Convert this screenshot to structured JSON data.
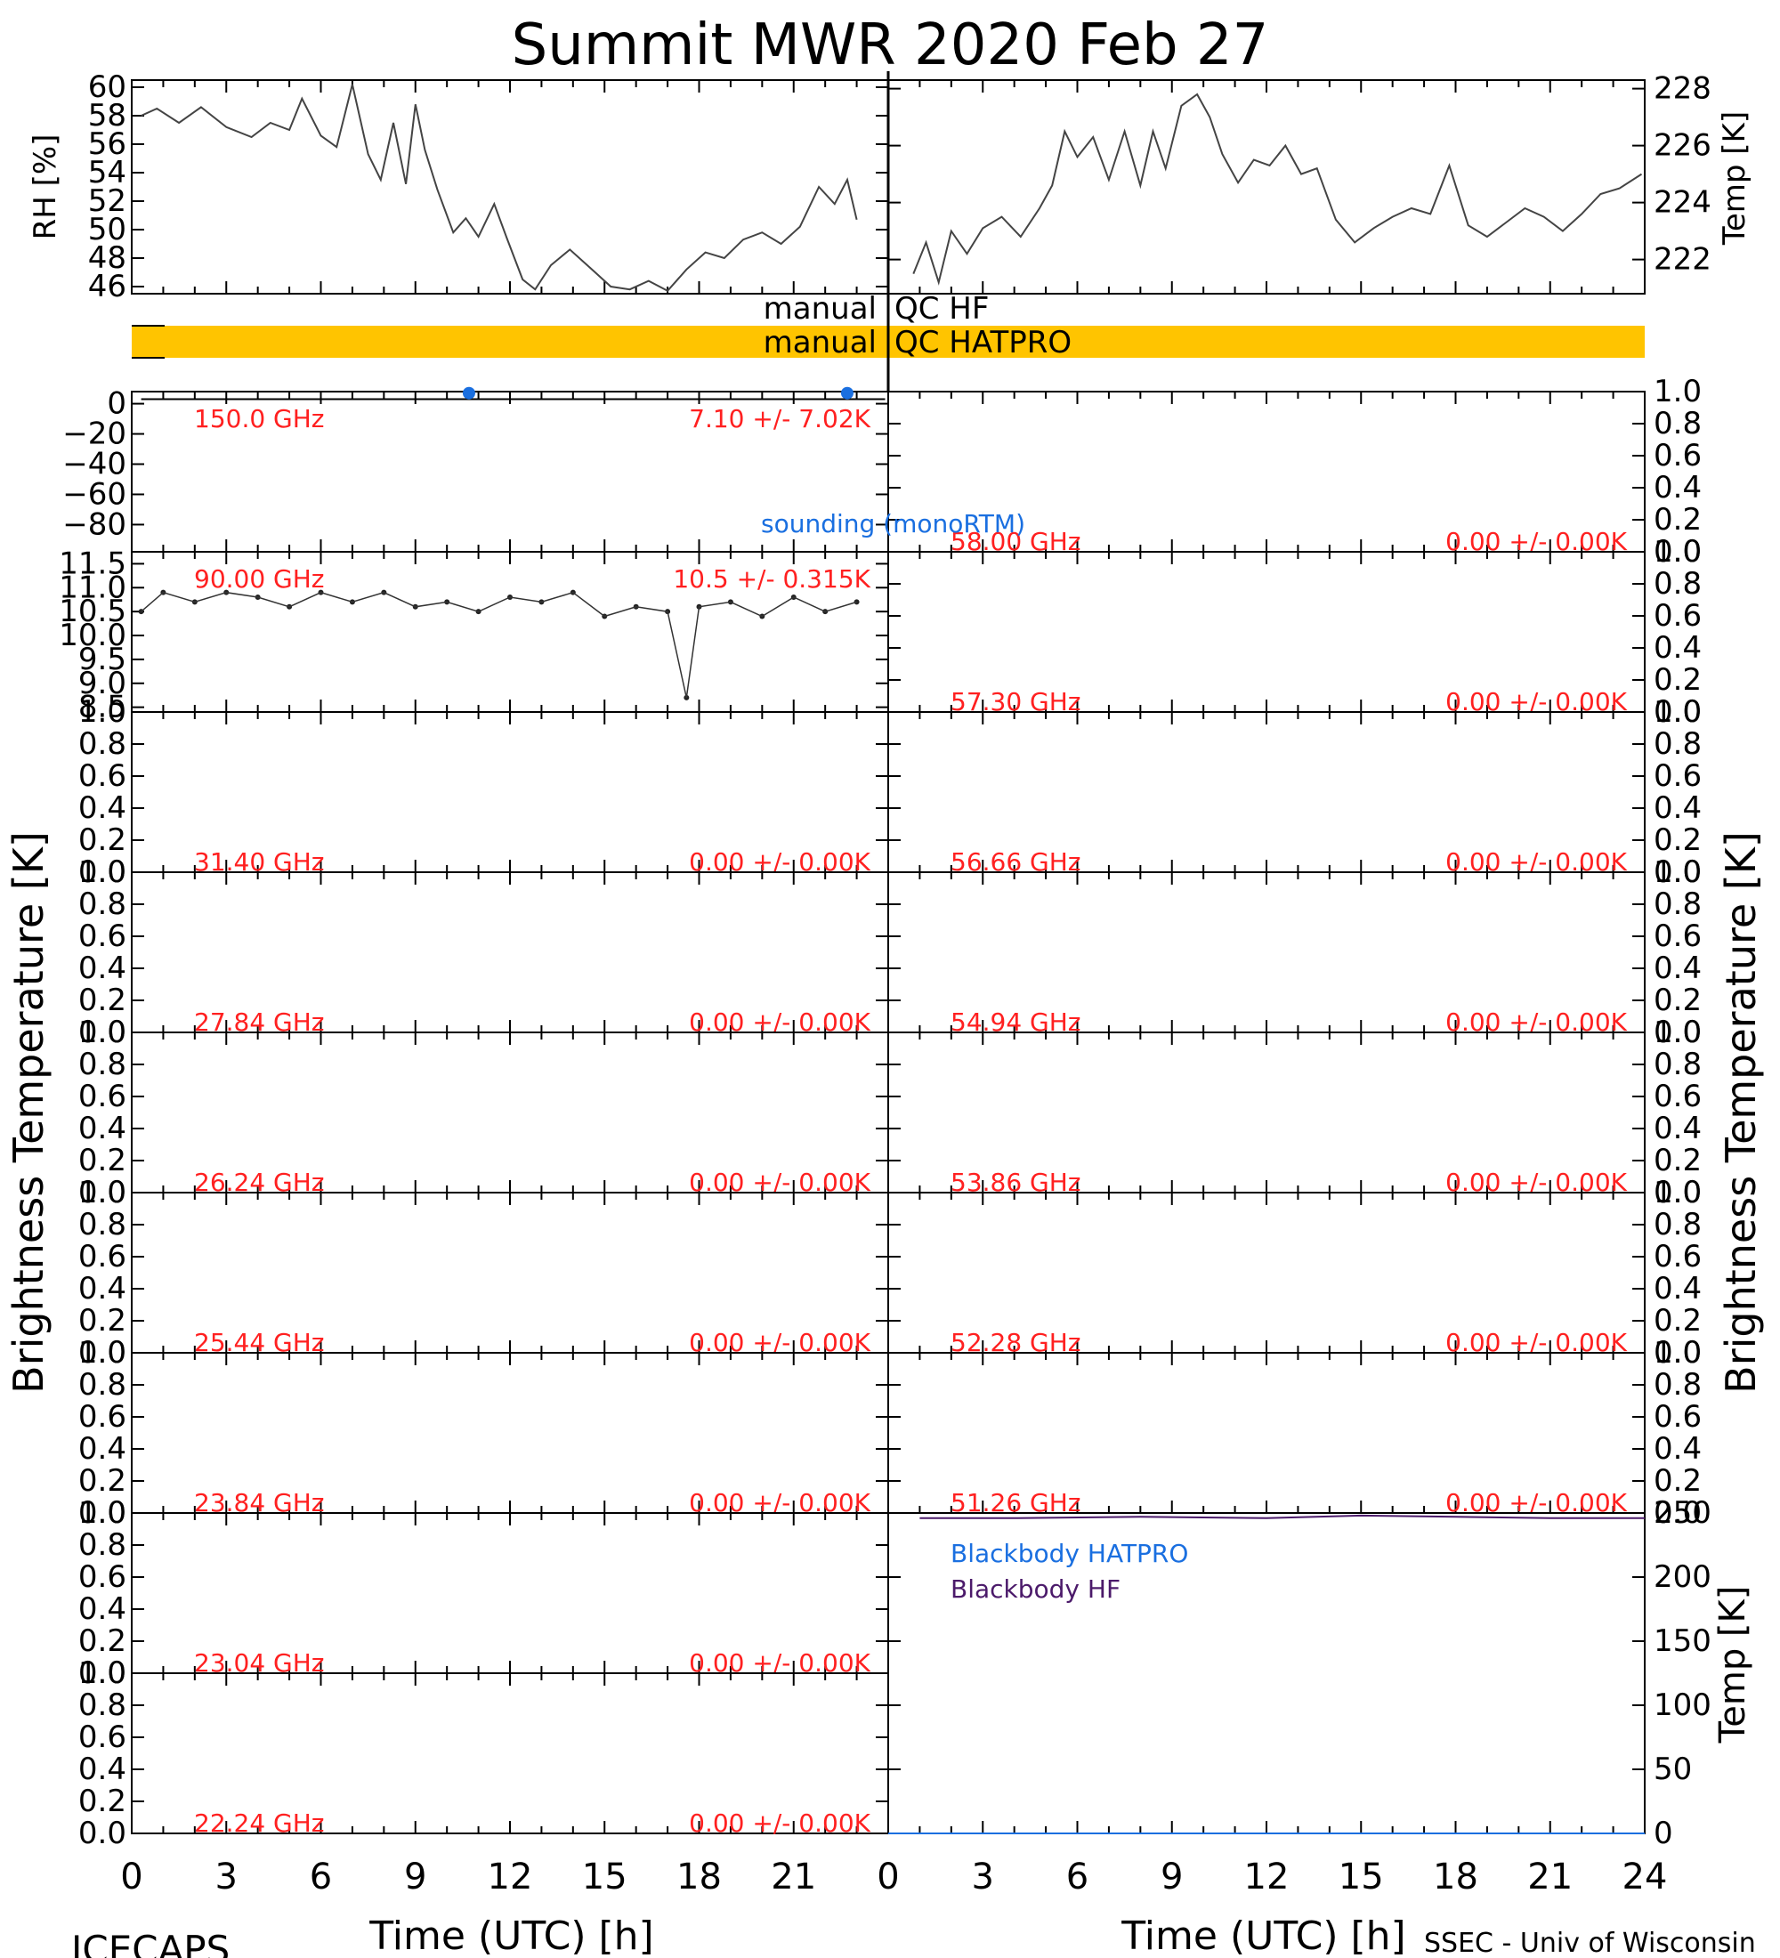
{
  "title": "Summit MWR 2020 Feb 27",
  "footer": {
    "left": "ICECAPS",
    "right": "SSEC - Univ of Wisconsin"
  },
  "x_axis": {
    "label": "Time (UTC) [h]",
    "ticks": [
      "0",
      "3",
      "6",
      "9",
      "12",
      "15",
      "18",
      "21",
      "24"
    ]
  },
  "y_label_left": "Brightness Temperature [K]",
  "y_label_right": "Brightness Temperature [K]",
  "qc": {
    "hf_left": "manual",
    "hf_right": "QC HF",
    "hatpro_left": "manual",
    "hatpro_right": "QC HATPRO",
    "hatpro_color": "#ffc400"
  },
  "legend": {
    "sounding": "sounding (monoRTM)",
    "bb_hatpro": "Blackbody HATPRO",
    "bb_hf": "Blackbody HF"
  },
  "colors": {
    "annotation": "#ff2020",
    "sounding": "#1a6fe0",
    "bb_hf": "#4b1a6a"
  },
  "chart_data": [
    {
      "type": "line",
      "panel": "top-left",
      "ylabel": "RH [%]",
      "ylim": [
        45.5,
        60.5
      ],
      "yticks": [
        "46",
        "48",
        "50",
        "52",
        "54",
        "56",
        "58",
        "60"
      ],
      "series": [
        {
          "x": [
            0.3,
            0.8,
            1.5,
            2.2,
            3,
            3.8,
            4.4,
            5.0,
            5.4,
            6.0,
            6.5,
            7.0,
            7.5,
            7.9,
            8.3,
            8.7,
            9.0,
            9.3,
            9.7,
            10.2,
            10.6,
            11.0,
            11.5,
            11.9,
            12.4,
            12.8,
            13.3,
            13.9,
            14.6,
            15.2,
            15.8,
            16.4,
            17.0,
            17.6,
            18.2,
            18.8,
            19.4,
            20.0,
            20.6,
            21.2,
            21.8,
            22.3,
            22.7,
            23.0
          ],
          "y": [
            58,
            58.5,
            57.5,
            58.6,
            57.2,
            56.5,
            57.5,
            57,
            59.2,
            56.6,
            55.8,
            60.2,
            55.3,
            53.5,
            57.5,
            53.2,
            58.8,
            55.6,
            52.8,
            49.8,
            50.8,
            49.5,
            51.8,
            49.4,
            46.5,
            45.8,
            47.5,
            48.6,
            47.2,
            46.0,
            45.8,
            46.4,
            45.7,
            47.2,
            48.4,
            48.0,
            49.3,
            49.8,
            49.0,
            50.2,
            53.0,
            51.8,
            53.5,
            50.7
          ]
        }
      ]
    },
    {
      "type": "line",
      "panel": "top-right",
      "ylabel": "Temp [K]",
      "ylim": [
        220.8,
        228.3
      ],
      "yticks": [
        "222",
        "224",
        "226",
        "228"
      ],
      "series": [
        {
          "x": [
            0.8,
            1.2,
            1.6,
            2.0,
            2.5,
            3.0,
            3.6,
            4.2,
            4.8,
            5.2,
            5.6,
            6.0,
            6.5,
            7.0,
            7.5,
            8.0,
            8.4,
            8.8,
            9.3,
            9.8,
            10.2,
            10.6,
            11.1,
            11.6,
            12.1,
            12.6,
            13.1,
            13.6,
            14.2,
            14.8,
            15.4,
            16.0,
            16.6,
            17.2,
            17.8,
            18.4,
            19.0,
            19.6,
            20.2,
            20.8,
            21.4,
            22.0,
            22.6,
            23.2,
            23.9
          ],
          "y": [
            221.5,
            222.6,
            221.2,
            223.0,
            222.2,
            223.1,
            223.5,
            222.8,
            223.8,
            224.6,
            226.5,
            225.6,
            226.3,
            224.8,
            226.5,
            224.6,
            226.5,
            225.2,
            227.4,
            227.8,
            227.0,
            225.7,
            224.7,
            225.5,
            225.3,
            226.0,
            225.0,
            225.2,
            223.4,
            222.6,
            223.1,
            223.5,
            223.8,
            223.6,
            225.3,
            223.2,
            222.8,
            223.3,
            223.8,
            223.5,
            223.0,
            223.6,
            224.3,
            224.5,
            225.0
          ]
        }
      ]
    },
    {
      "type": "line",
      "panel": "left-1",
      "freq": "150.0 GHz",
      "stats": "7.10 +/-  7.02K",
      "ylim": [
        -98,
        8
      ],
      "yticks": [
        "0",
        "-20",
        "-40",
        "-60",
        "-80"
      ],
      "series": [
        {
          "name": "sounding (monoRTM)",
          "x": [
            10.7,
            22.7
          ],
          "y": [
            7,
            7
          ]
        }
      ]
    },
    {
      "type": "scatter",
      "panel": "left-2",
      "freq": "90.00 GHz",
      "stats": "10.5 +/- 0.315K",
      "ylim": [
        8.4,
        11.75
      ],
      "yticks": [
        "11.5",
        "11.0",
        "10.5",
        "10.0",
        "9.5",
        "9.0",
        "8.5"
      ],
      "series": [
        {
          "x": [
            0.3,
            1,
            2,
            3,
            4,
            5,
            6,
            7,
            8,
            9,
            10,
            11,
            12,
            13,
            14,
            15,
            16,
            17,
            17.6,
            18,
            19,
            20,
            21,
            22,
            23
          ],
          "y": [
            10.5,
            10.9,
            10.7,
            10.9,
            10.8,
            10.6,
            10.9,
            10.7,
            10.9,
            10.6,
            10.7,
            10.5,
            10.8,
            10.7,
            10.9,
            10.4,
            10.6,
            10.5,
            8.7,
            10.6,
            10.7,
            10.4,
            10.8,
            10.5,
            10.7
          ]
        }
      ]
    },
    {
      "type": "line",
      "panel": "left-3",
      "freq": "31.40 GHz",
      "stats": "0.00 +/-  0.00K"
    },
    {
      "type": "line",
      "panel": "left-4",
      "freq": "27.84 GHz",
      "stats": "0.00 +/-  0.00K"
    },
    {
      "type": "line",
      "panel": "left-5",
      "freq": "26.24 GHz",
      "stats": "0.00 +/-  0.00K"
    },
    {
      "type": "line",
      "panel": "left-6",
      "freq": "25.44 GHz",
      "stats": "0.00 +/-  0.00K"
    },
    {
      "type": "line",
      "panel": "left-7",
      "freq": "23.84 GHz",
      "stats": "0.00 +/-  0.00K"
    },
    {
      "type": "line",
      "panel": "left-8",
      "freq": "23.04 GHz",
      "stats": "0.00 +/-  0.00K"
    },
    {
      "type": "line",
      "panel": "left-9",
      "freq": "22.24 GHz",
      "stats": "0.00 +/-  0.00K"
    },
    {
      "type": "line",
      "panel": "right-1",
      "freq": "58.00 GHz",
      "stats": "0.00 +/-  0.00K"
    },
    {
      "type": "line",
      "panel": "right-2",
      "freq": "57.30 GHz",
      "stats": "0.00 +/-  0.00K"
    },
    {
      "type": "line",
      "panel": "right-3",
      "freq": "56.66 GHz",
      "stats": "0.00 +/-  0.00K"
    },
    {
      "type": "line",
      "panel": "right-4",
      "freq": "54.94 GHz",
      "stats": "0.00 +/-  0.00K"
    },
    {
      "type": "line",
      "panel": "right-5",
      "freq": "53.86 GHz",
      "stats": "0.00 +/-  0.00K"
    },
    {
      "type": "line",
      "panel": "right-6",
      "freq": "52.28 GHz",
      "stats": "0.00 +/-  0.00K"
    },
    {
      "type": "line",
      "panel": "right-7",
      "freq": "51.26 GHz",
      "stats": "0.00 +/-  0.00K"
    },
    {
      "type": "line",
      "panel": "right-8",
      "ylabel": "Temp [K]",
      "ylim": [
        0,
        250
      ],
      "yticks": [
        "250",
        "200",
        "150",
        "100",
        "50",
        "0"
      ],
      "series": [
        {
          "name": "Blackbody HF",
          "x": [
            1,
            4,
            8,
            12,
            15,
            18,
            21,
            24
          ],
          "y": [
            246,
            246,
            247,
            246,
            248,
            247,
            246,
            246
          ]
        },
        {
          "name": "Blackbody HATPRO",
          "x": [
            0,
            24
          ],
          "y": [
            0,
            0
          ]
        }
      ]
    }
  ]
}
